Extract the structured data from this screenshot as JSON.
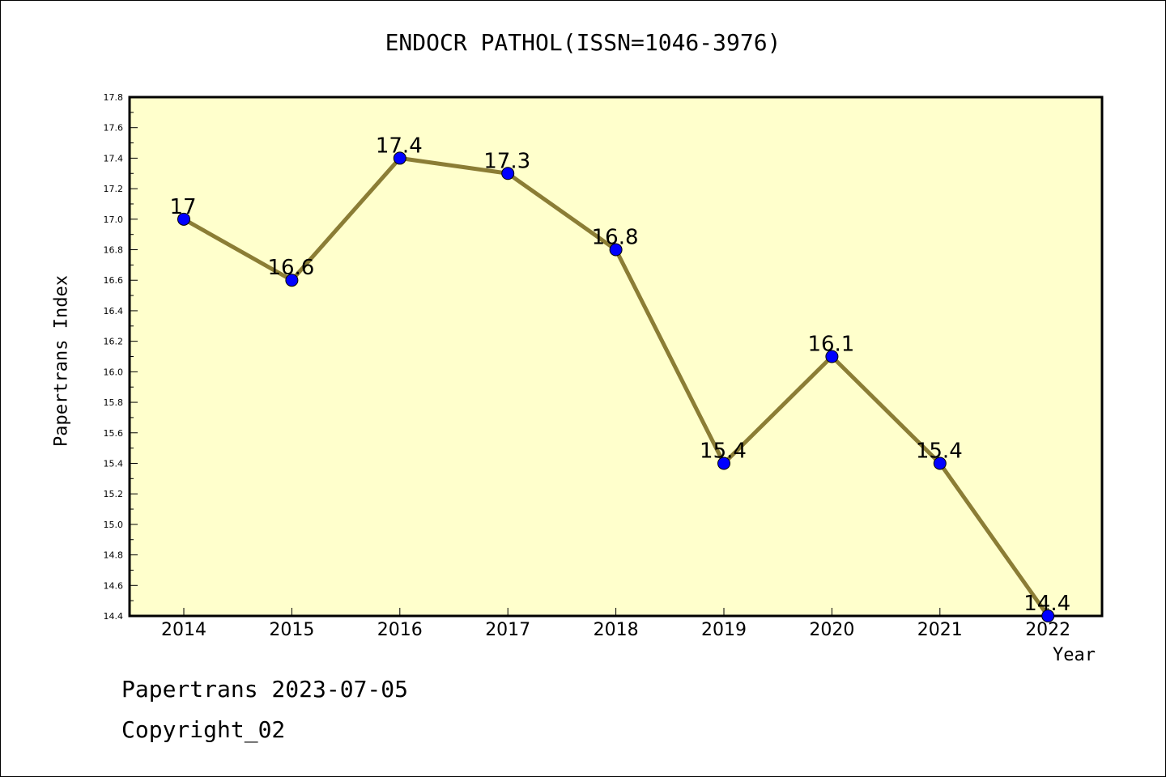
{
  "chart_data": {
    "type": "line",
    "title": "ENDOCR PATHOL(ISSN=1046-3976)",
    "xlabel": "Year",
    "ylabel": "Papertrans Index",
    "x": [
      "2014",
      "2015",
      "2016",
      "2017",
      "2018",
      "2019",
      "2020",
      "2021",
      "2022"
    ],
    "series": [
      {
        "values": [
          17.0,
          16.6,
          17.4,
          17.3,
          16.8,
          15.4,
          16.1,
          15.4,
          14.4
        ]
      }
    ],
    "data_labels": [
      "17",
      "16.6",
      "17.4",
      "17.3",
      "16.8",
      "15.4",
      "16.1",
      "15.4",
      "14.4"
    ],
    "ylim": [
      14.4,
      17.8
    ],
    "yticks": [
      "14.4",
      "14.6",
      "14.8",
      "15.0",
      "15.2",
      "15.4",
      "15.6",
      "15.8",
      "16.0",
      "16.2",
      "16.4",
      "16.6",
      "16.8",
      "17.0",
      "17.2",
      "17.4",
      "17.6",
      "17.8"
    ],
    "grid": false,
    "colors": {
      "plot_background": "#ffffcc",
      "line": "#8b7d35",
      "marker": "#0000ff"
    }
  },
  "footer": {
    "line1": "Papertrans 2023-07-05",
    "line2": "Copyright_02"
  }
}
